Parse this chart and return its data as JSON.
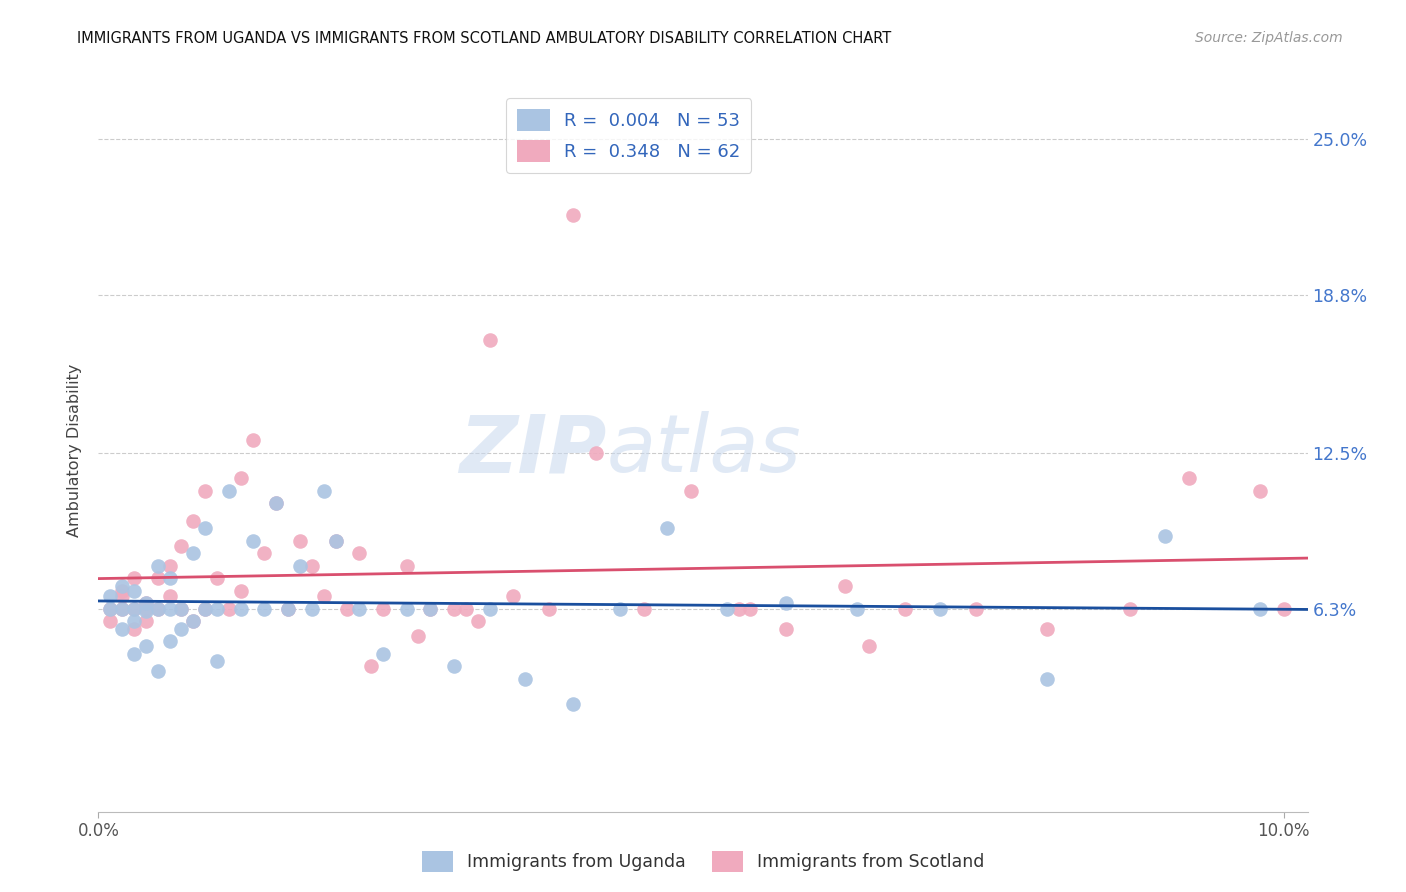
{
  "title": "IMMIGRANTS FROM UGANDA VS IMMIGRANTS FROM SCOTLAND AMBULATORY DISABILITY CORRELATION CHART",
  "source": "Source: ZipAtlas.com",
  "ylabel": "Ambulatory Disability",
  "xlim": [
    0.0,
    0.102
  ],
  "ylim": [
    -0.018,
    0.27
  ],
  "yticks": [
    0.063,
    0.125,
    0.188,
    0.25
  ],
  "ytick_labels": [
    "6.3%",
    "12.5%",
    "18.8%",
    "25.0%"
  ],
  "xticks": [
    0.0,
    0.1
  ],
  "xtick_labels": [
    "0.0%",
    "10.0%"
  ],
  "uganda_color": "#aac4e2",
  "scotland_color": "#f0aabe",
  "uganda_line_color": "#1a4f9e",
  "scotland_line_color": "#d94f6e",
  "uganda_R": "0.004",
  "uganda_N": "53",
  "scotland_R": "0.348",
  "scotland_N": "62",
  "legend_label_uganda": "Immigrants from Uganda",
  "legend_label_scotland": "Immigrants from Scotland",
  "watermark_zip": "ZIP",
  "watermark_atlas": "atlas",
  "background_color": "#ffffff",
  "uganda_x": [
    0.001,
    0.001,
    0.002,
    0.002,
    0.002,
    0.003,
    0.003,
    0.003,
    0.003,
    0.004,
    0.004,
    0.004,
    0.005,
    0.005,
    0.005,
    0.006,
    0.006,
    0.006,
    0.007,
    0.007,
    0.008,
    0.008,
    0.009,
    0.009,
    0.01,
    0.01,
    0.011,
    0.012,
    0.013,
    0.014,
    0.015,
    0.016,
    0.017,
    0.018,
    0.019,
    0.02,
    0.022,
    0.024,
    0.026,
    0.028,
    0.03,
    0.033,
    0.036,
    0.04,
    0.044,
    0.048,
    0.053,
    0.058,
    0.064,
    0.071,
    0.08,
    0.09,
    0.098
  ],
  "uganda_y": [
    0.063,
    0.068,
    0.055,
    0.063,
    0.072,
    0.045,
    0.058,
    0.063,
    0.07,
    0.048,
    0.062,
    0.065,
    0.038,
    0.063,
    0.08,
    0.05,
    0.063,
    0.075,
    0.055,
    0.063,
    0.058,
    0.085,
    0.063,
    0.095,
    0.042,
    0.063,
    0.11,
    0.063,
    0.09,
    0.063,
    0.105,
    0.063,
    0.08,
    0.063,
    0.11,
    0.09,
    0.063,
    0.045,
    0.063,
    0.063,
    0.04,
    0.063,
    0.035,
    0.025,
    0.063,
    0.095,
    0.063,
    0.065,
    0.063,
    0.063,
    0.035,
    0.092,
    0.063
  ],
  "scotland_x": [
    0.001,
    0.001,
    0.002,
    0.002,
    0.002,
    0.003,
    0.003,
    0.003,
    0.004,
    0.004,
    0.004,
    0.005,
    0.005,
    0.006,
    0.006,
    0.007,
    0.007,
    0.008,
    0.008,
    0.009,
    0.009,
    0.01,
    0.011,
    0.012,
    0.012,
    0.013,
    0.014,
    0.015,
    0.016,
    0.017,
    0.018,
    0.019,
    0.02,
    0.021,
    0.022,
    0.024,
    0.026,
    0.028,
    0.03,
    0.032,
    0.035,
    0.038,
    0.042,
    0.046,
    0.05,
    0.054,
    0.058,
    0.063,
    0.068,
    0.074,
    0.08,
    0.087,
    0.092,
    0.098,
    0.04,
    0.023,
    0.027,
    0.055,
    0.031,
    0.065,
    0.033,
    0.1
  ],
  "scotland_y": [
    0.063,
    0.058,
    0.068,
    0.063,
    0.07,
    0.055,
    0.063,
    0.075,
    0.063,
    0.058,
    0.065,
    0.075,
    0.063,
    0.068,
    0.08,
    0.063,
    0.088,
    0.058,
    0.098,
    0.063,
    0.11,
    0.075,
    0.063,
    0.115,
    0.07,
    0.13,
    0.085,
    0.105,
    0.063,
    0.09,
    0.08,
    0.068,
    0.09,
    0.063,
    0.085,
    0.063,
    0.08,
    0.063,
    0.063,
    0.058,
    0.068,
    0.063,
    0.125,
    0.063,
    0.11,
    0.063,
    0.055,
    0.072,
    0.063,
    0.063,
    0.055,
    0.063,
    0.115,
    0.11,
    0.22,
    0.04,
    0.052,
    0.063,
    0.063,
    0.048,
    0.17,
    0.063
  ]
}
